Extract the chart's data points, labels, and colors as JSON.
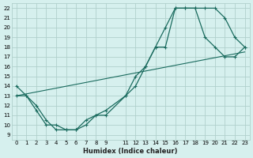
{
  "xlabel": "Humidex (Indice chaleur)",
  "bg_color": "#d6f0ee",
  "grid_color": "#b0d0cc",
  "line_color": "#1a6b5e",
  "xlim": [
    -0.5,
    23.5
  ],
  "ylim": [
    8.5,
    22.5
  ],
  "xticks": [
    0,
    1,
    2,
    3,
    4,
    5,
    6,
    7,
    8,
    9,
    11,
    12,
    13,
    14,
    15,
    16,
    17,
    18,
    19,
    20,
    21,
    22,
    23
  ],
  "yticks": [
    9,
    10,
    11,
    12,
    13,
    14,
    15,
    16,
    17,
    18,
    19,
    20,
    21,
    22
  ],
  "line1_x": [
    0,
    1,
    2,
    3,
    4,
    5,
    6,
    7,
    8,
    9,
    11,
    12,
    13,
    14,
    15,
    16,
    17,
    18,
    19,
    20,
    21,
    22,
    23
  ],
  "line1_y": [
    14,
    13,
    12,
    10.5,
    9.5,
    9.5,
    9.5,
    10,
    11,
    11,
    13,
    14,
    16,
    18,
    20,
    22,
    22,
    22,
    22,
    22,
    21,
    19,
    18
  ],
  "line2_x": [
    0,
    1,
    2,
    3,
    4,
    5,
    6,
    7,
    8,
    9,
    11,
    12,
    13,
    14,
    15,
    16,
    17,
    18,
    19,
    20,
    21,
    22,
    23
  ],
  "line2_y": [
    13,
    13,
    11.5,
    10,
    10,
    9.5,
    9.5,
    10.5,
    11,
    11.5,
    13,
    15,
    16,
    18,
    18,
    22,
    22,
    22,
    19,
    18,
    17,
    17,
    18
  ],
  "line3_x": [
    0,
    23
  ],
  "line3_y": [
    13,
    17.5
  ]
}
